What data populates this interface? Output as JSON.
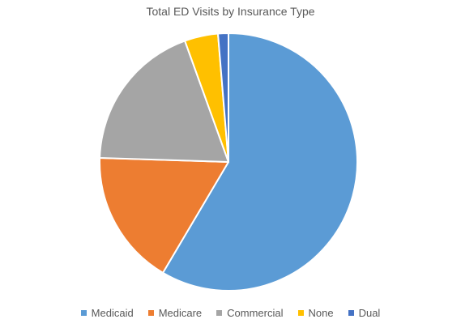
{
  "chart_data": {
    "type": "pie",
    "title": "Total ED Visits by Insurance Type",
    "categories": [
      "Medicaid",
      "Medicare",
      "Commercial",
      "None",
      "Dual"
    ],
    "values": [
      58.5,
      17.0,
      19.0,
      4.2,
      1.3
    ],
    "colors": [
      "#5b9bd5",
      "#ed7d31",
      "#a5a5a5",
      "#ffc000",
      "#4472c4"
    ],
    "legend_position": "bottom",
    "start_angle": "12 o'clock",
    "direction": "clockwise"
  }
}
